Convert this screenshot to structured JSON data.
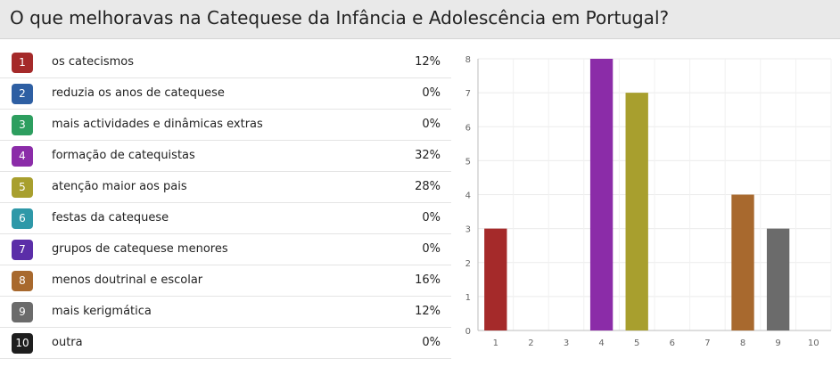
{
  "question": "O que melhoravas na Catequese da Infância e Adolescência em Portugal?",
  "items": [
    {
      "number": "1",
      "label": "os catecismos",
      "percent": "12%",
      "color": "#a52a2a"
    },
    {
      "number": "2",
      "label": "reduzia os anos de catequese",
      "percent": "0%",
      "color": "#2e5fa3"
    },
    {
      "number": "3",
      "label": "mais actividades e dinâmicas extras",
      "percent": "0%",
      "color": "#2d9e5f"
    },
    {
      "number": "4",
      "label": "formação de catequistas",
      "percent": "32%",
      "color": "#8b2ca8"
    },
    {
      "number": "5",
      "label": "atenção maior aos pais",
      "percent": "28%",
      "color": "#a89f2e"
    },
    {
      "number": "6",
      "label": "festas da catequese",
      "percent": "0%",
      "color": "#2e98a8"
    },
    {
      "number": "7",
      "label": "grupos de catequese menores",
      "percent": "0%",
      "color": "#5b2ea8"
    },
    {
      "number": "8",
      "label": "menos doutrinal e escolar",
      "percent": "16%",
      "color": "#a8692e"
    },
    {
      "number": "9",
      "label": "mais kerigmática",
      "percent": "12%",
      "color": "#6b6b6b"
    },
    {
      "number": "10",
      "label": "outra",
      "percent": "0%",
      "color": "#1e1e1e"
    }
  ],
  "chart_data": {
    "type": "bar",
    "categories": [
      "1",
      "2",
      "3",
      "4",
      "5",
      "6",
      "7",
      "8",
      "9",
      "10"
    ],
    "values": [
      3,
      0,
      0,
      8,
      7,
      0,
      0,
      4,
      3,
      0
    ],
    "colors": [
      "#a52a2a",
      "#2e5fa3",
      "#2d9e5f",
      "#8b2ca8",
      "#a89f2e",
      "#2e98a8",
      "#5b2ea8",
      "#a8692e",
      "#6b6b6b",
      "#1e1e1e"
    ],
    "yticks": [
      0,
      1,
      2,
      3,
      4,
      5,
      6,
      7,
      8
    ],
    "ylim": [
      0,
      8
    ],
    "grid": true,
    "legend": "none",
    "title": "",
    "xlabel": "",
    "ylabel": ""
  }
}
